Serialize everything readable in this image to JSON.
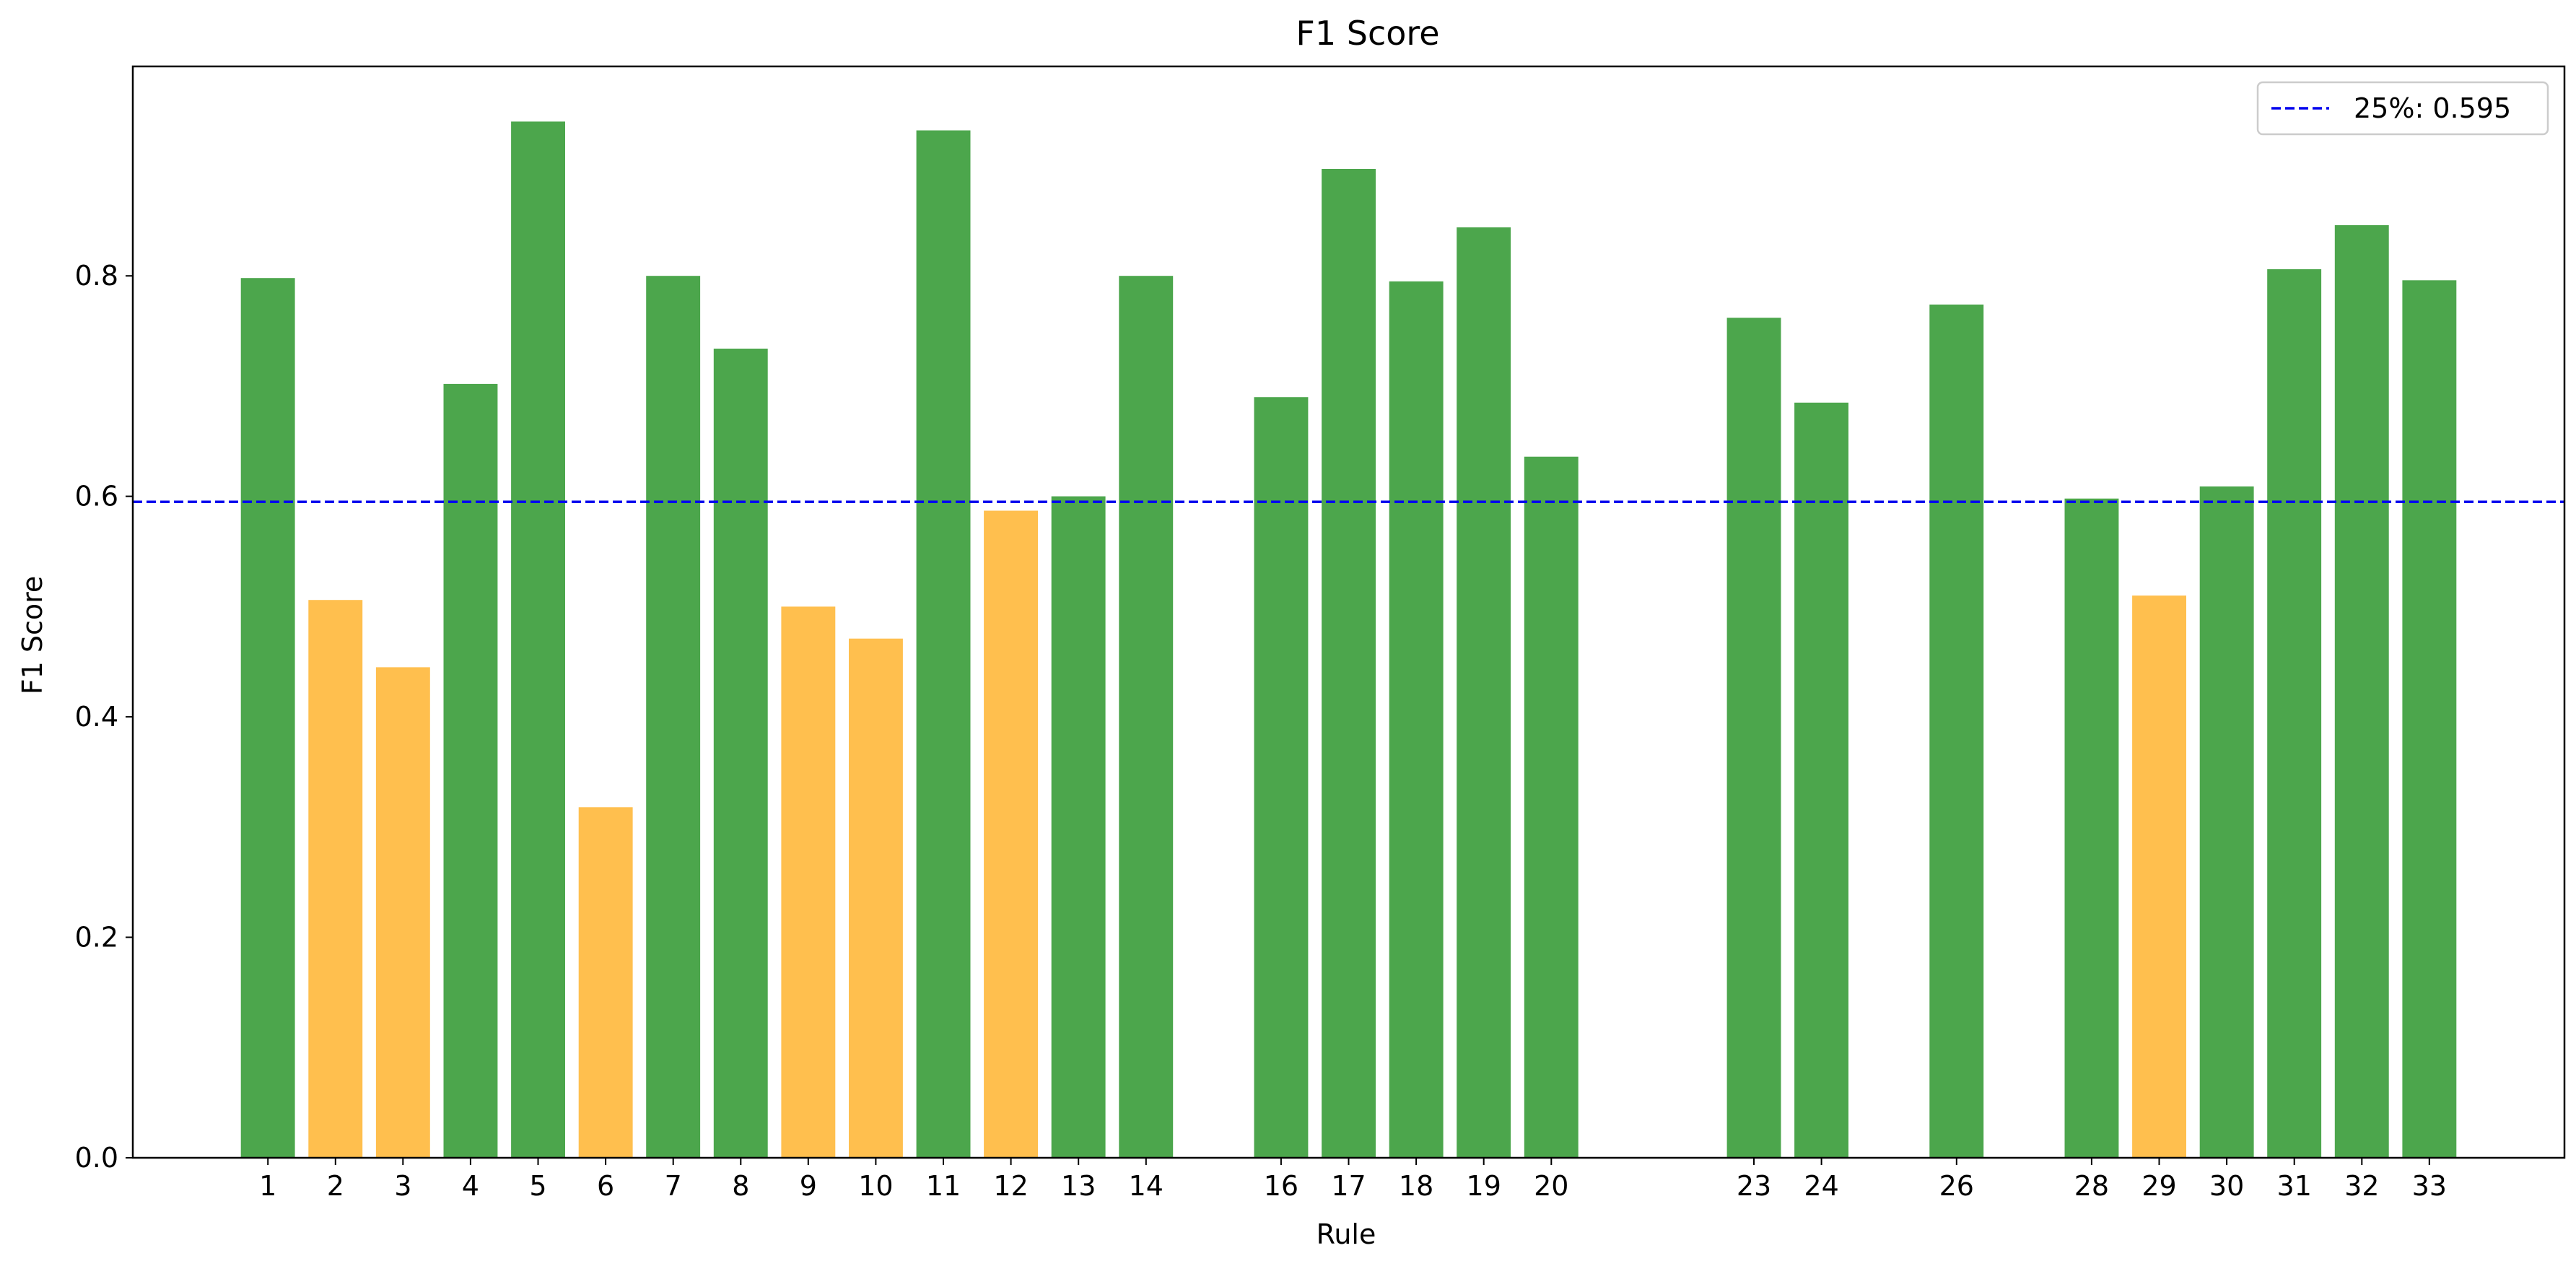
{
  "chart_data": {
    "type": "bar",
    "title": "F1 Score",
    "xlabel": "Rule",
    "ylabel": "F1 Score",
    "ylim": [
      0,
      0.99
    ],
    "xlim": [
      -1,
      35
    ],
    "yticks": [
      0.0,
      0.2,
      0.4,
      0.6,
      0.8
    ],
    "ytick_labels": [
      "0.0",
      "0.2",
      "0.4",
      "0.6",
      "0.8"
    ],
    "grid": false,
    "legend_position": "top-right",
    "categories": [
      "1",
      "2",
      "3",
      "4",
      "5",
      "6",
      "7",
      "8",
      "9",
      "10",
      "11",
      "12",
      "13",
      "14",
      "16",
      "17",
      "18",
      "19",
      "20",
      "23",
      "24",
      "26",
      "28",
      "29",
      "30",
      "31",
      "32",
      "33"
    ],
    "x": [
      1,
      2,
      3,
      4,
      5,
      6,
      7,
      8,
      9,
      10,
      11,
      12,
      13,
      14,
      16,
      17,
      18,
      19,
      20,
      23,
      24,
      26,
      28,
      29,
      30,
      31,
      32,
      33
    ],
    "values": [
      0.798,
      0.506,
      0.445,
      0.702,
      0.94,
      0.318,
      0.8,
      0.734,
      0.5,
      0.471,
      0.932,
      0.587,
      0.6,
      0.8,
      0.69,
      0.897,
      0.795,
      0.844,
      0.636,
      0.762,
      0.685,
      0.774,
      0.598,
      0.51,
      0.609,
      0.806,
      0.846,
      0.796
    ],
    "colors": {
      "above": "#4ca64c",
      "below": "#ffbf4e",
      "reference": "#0000ee"
    },
    "reference_line": {
      "value": 0.595,
      "label": "25%: 0.595",
      "style": "dashed"
    }
  }
}
